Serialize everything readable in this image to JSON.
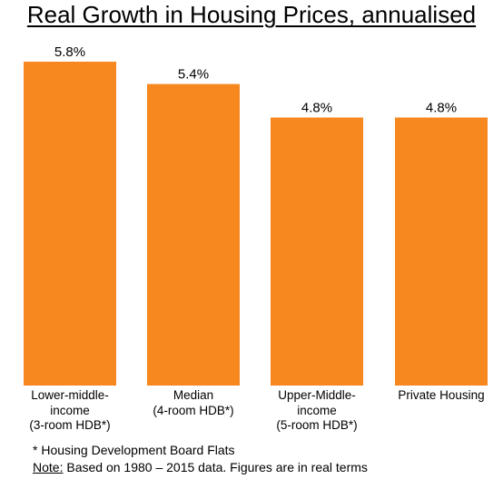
{
  "chart_data": {
    "type": "bar",
    "title": "Real Growth in Housing Prices, annualised",
    "categories": [
      "Lower-middle-\nincome\n(3-room HDB*)",
      "Median\n(4-room HDB*)",
      "Upper-Middle-\nincome\n(5-room HDB*)",
      "Private Housing"
    ],
    "values": [
      5.8,
      5.4,
      4.8,
      4.8
    ],
    "data_labels": [
      "5.8%",
      "5.4%",
      "4.8%",
      "4.8%"
    ],
    "bar_color": "#F7871F",
    "ylim": [
      0,
      5.8
    ],
    "xlabel": "",
    "ylabel": "",
    "grid": false,
    "legend": "none"
  },
  "footnote": "* Housing Development Board Flats",
  "note": {
    "label": "Note:",
    "text": " Based on 1980 – 2015 data. Figures are in real terms"
  }
}
